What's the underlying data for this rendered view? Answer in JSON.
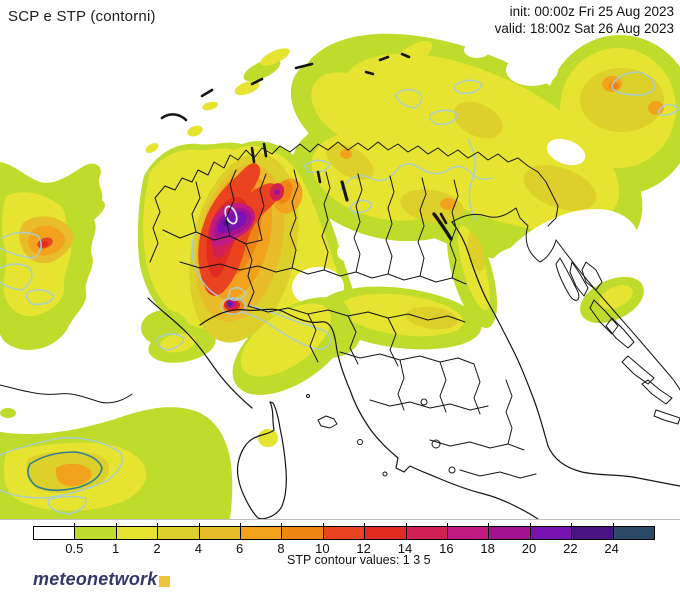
{
  "header": {
    "title": "SCP e STP (contorni)",
    "init_line": "init: 00:00z Fri 25 Aug 2023",
    "valid_line": "valid: 18:00z Sat 26 Aug 2023"
  },
  "palette": {
    "c0": "#ffffff",
    "c05": "#bfdc2d",
    "c1": "#e7e431",
    "c2": "#ddd02a",
    "c4": "#e9bc2b",
    "c6": "#f3a21e",
    "c8": "#ef8614",
    "c10": "#e9441f",
    "c12": "#e22b20",
    "c14": "#d12153",
    "c16": "#c11a80",
    "c18": "#a31390",
    "c20": "#7a12b2",
    "c22": "#491386",
    "c24": "#2c4a68"
  },
  "colors": {
    "stp_light": "#a9cdd6",
    "stp_dark": "#2e8091",
    "ring_white": "#e9e9f2",
    "border": "#151515",
    "frame": "#c0c0c0"
  },
  "colorbar": {
    "segments": [
      "c0",
      "c05",
      "c1",
      "c2",
      "c4",
      "c6",
      "c8",
      "c10",
      "c12",
      "c14",
      "c16",
      "c18",
      "c20",
      "c22",
      "c24"
    ],
    "tick_labels": [
      "0.5",
      "1",
      "2",
      "4",
      "6",
      "8",
      "10",
      "12",
      "14",
      "16",
      "18",
      "20",
      "22",
      "24"
    ],
    "note": "STP contour values: 1 3 5"
  },
  "footer": {
    "logo_text": "meteonetwork",
    "logo_square": "#eec33f"
  }
}
